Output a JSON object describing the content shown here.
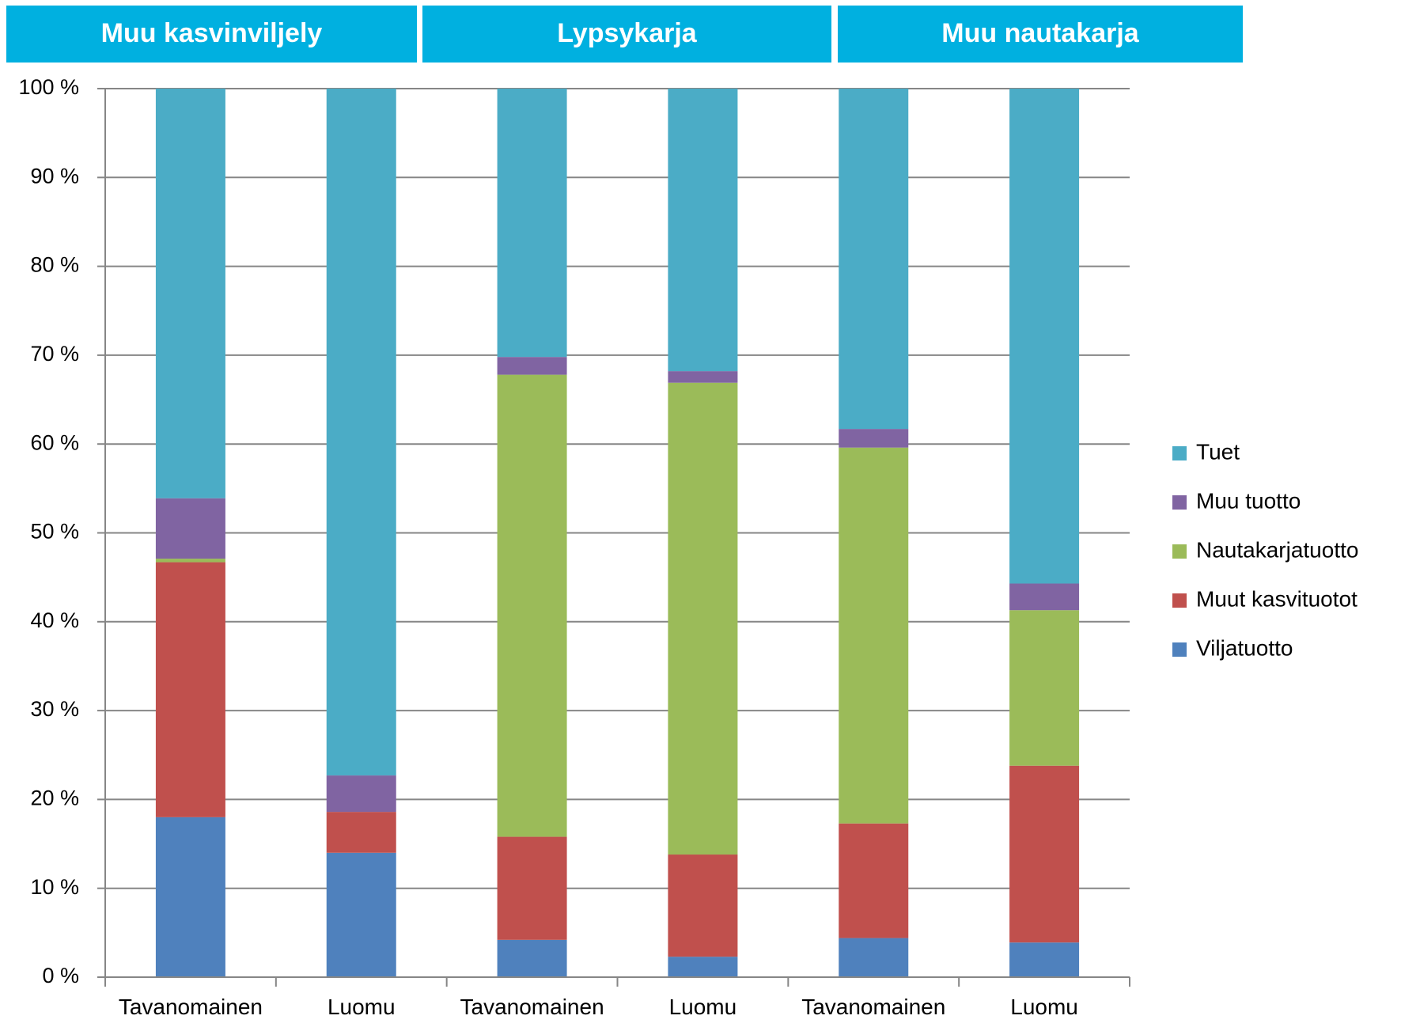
{
  "chart_data": {
    "type": "bar",
    "stacked": true,
    "percent_stacked": true,
    "groups": [
      {
        "label": "Muu kasvinviljely",
        "categories": [
          0,
          1
        ]
      },
      {
        "label": "Lypsykarja",
        "categories": [
          2,
          3
        ]
      },
      {
        "label": "Muu nautakarja",
        "categories": [
          4,
          5
        ]
      }
    ],
    "categories": [
      "Tavanomainen",
      "Luomu",
      "Tavanomainen",
      "Luomu",
      "Tavanomainen",
      "Luomu"
    ],
    "series": [
      {
        "name": "Viljatuotto",
        "color": "#4f81bd",
        "values": [
          18.0,
          14.0,
          4.2,
          2.3,
          4.4,
          3.9
        ]
      },
      {
        "name": "Muut kasvituotot",
        "color": "#c0504d",
        "values": [
          28.7,
          4.6,
          11.6,
          11.5,
          12.9,
          19.9
        ]
      },
      {
        "name": "Nautakarjatuotto",
        "color": "#9bbb59",
        "values": [
          0.4,
          0.0,
          52.0,
          53.1,
          42.3,
          17.5
        ]
      },
      {
        "name": "Muu tuotto",
        "color": "#8064a2",
        "values": [
          6.8,
          4.1,
          2.0,
          1.3,
          2.1,
          3.0
        ]
      },
      {
        "name": "Tuet",
        "color": "#4bacc6",
        "values": [
          46.1,
          77.3,
          30.2,
          31.8,
          38.3,
          55.7
        ]
      }
    ],
    "legend_order": [
      "Tuet",
      "Muu tuotto",
      "Nautakarjatuotto",
      "Muut kasvituotot",
      "Viljatuotto"
    ],
    "yticks": [
      "0 %",
      "10 %",
      "20 %",
      "30 %",
      "40 %",
      "50 %",
      "60 %",
      "70 %",
      "80 %",
      "90 %",
      "100 %"
    ],
    "ylim": [
      0,
      100
    ],
    "grid": true,
    "legend_position": "right",
    "header_color": "#00b0e0"
  }
}
